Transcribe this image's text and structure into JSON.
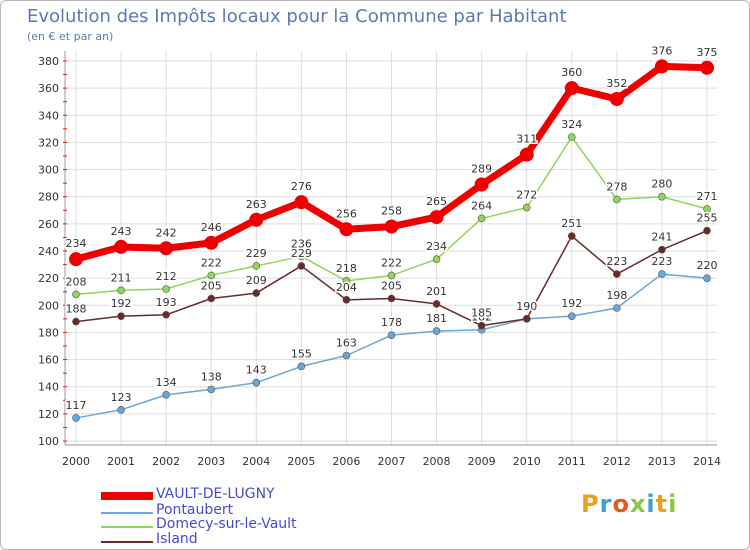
{
  "title": "Evolution des Impôts locaux pour la Commune par Habitant",
  "subtitle": "(en € et par an)",
  "logo_text": "Proxiti",
  "colors": {
    "grid": "#dddddd",
    "axis_tick": "#d02020",
    "tick_label": "#333333",
    "title": "#5a7bb0"
  },
  "chart_data": {
    "type": "line",
    "title": "Evolution des Impôts locaux pour la Commune par Habitant",
    "subtitle": "(en € et par an)",
    "x": [
      "2000",
      "2001",
      "2002",
      "2003",
      "2004",
      "2005",
      "2006",
      "2007",
      "2008",
      "2009",
      "2010",
      "2011",
      "2012",
      "2013",
      "2014"
    ],
    "ylim": [
      100,
      380
    ],
    "yticks": [
      100,
      120,
      140,
      160,
      180,
      200,
      220,
      240,
      260,
      280,
      300,
      320,
      340,
      360,
      380
    ],
    "grid": true,
    "legend_position": "bottom-left",
    "series": [
      {
        "name": "VAULT-DE-LUGNY",
        "color": "#ee0000",
        "values": [
          234,
          243,
          242,
          246,
          263,
          276,
          256,
          258,
          265,
          289,
          311,
          360,
          352,
          376,
          375
        ]
      },
      {
        "name": "Pontaubert",
        "color": "#6aa6d8",
        "values": [
          117,
          123,
          134,
          138,
          143,
          155,
          163,
          178,
          181,
          182,
          190,
          192,
          198,
          223,
          220
        ]
      },
      {
        "name": "Domecy-sur-le-Vault",
        "color": "#8fd65a",
        "values": [
          208,
          211,
          212,
          222,
          229,
          236,
          218,
          222,
          234,
          264,
          272,
          324,
          278,
          280,
          271
        ]
      },
      {
        "name": "Island",
        "color": "#6b2a2a",
        "values": [
          188,
          192,
          193,
          205,
          209,
          229,
          204,
          205,
          201,
          185,
          190,
          251,
          223,
          241,
          255
        ]
      }
    ]
  }
}
